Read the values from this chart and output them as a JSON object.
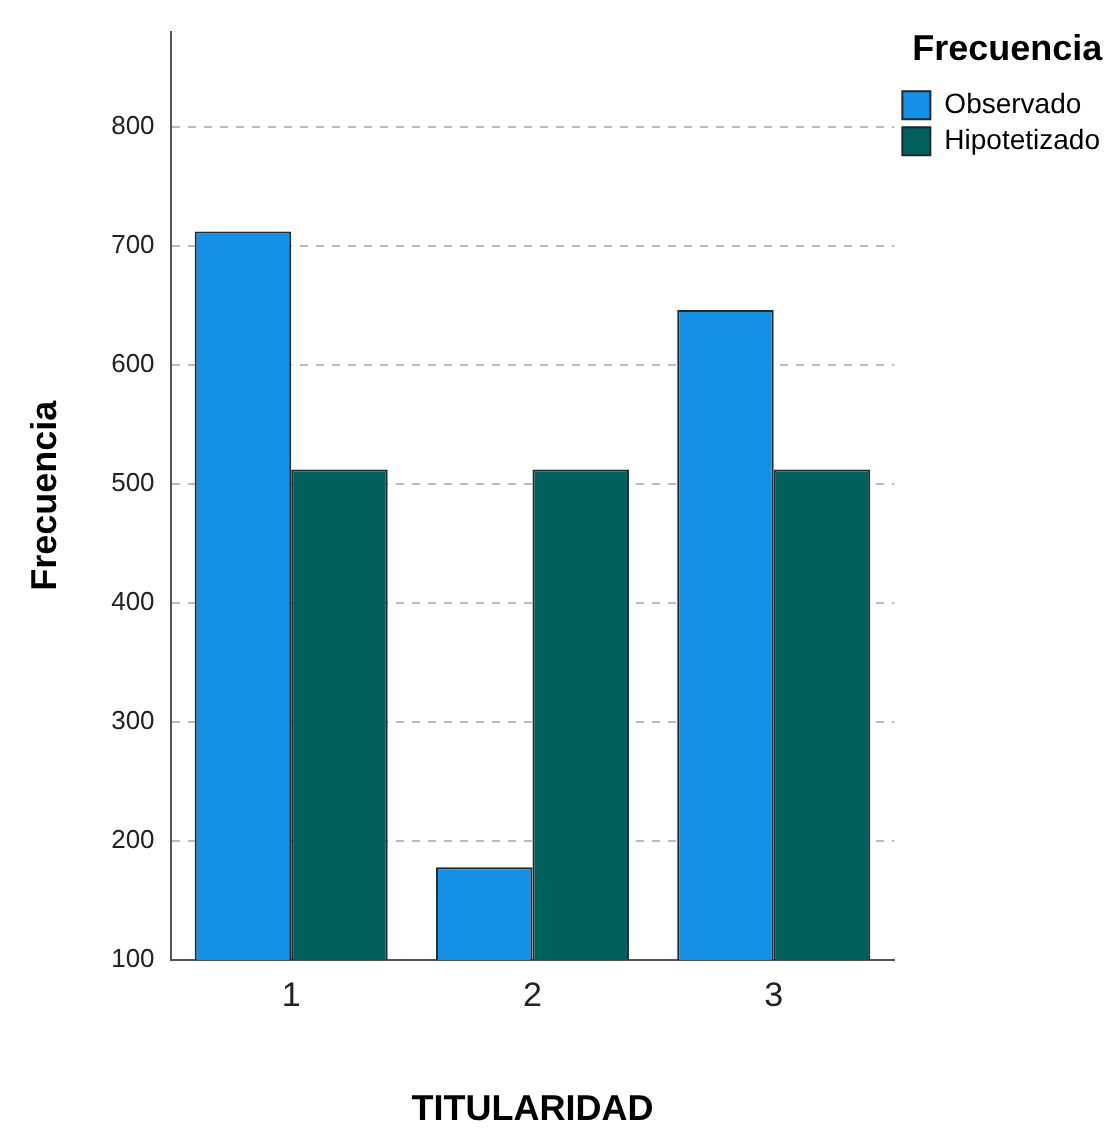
{
  "chart_data": {
    "type": "bar",
    "xlabel": "TITULARIDAD",
    "ylabel": "Frecuencia",
    "legend_title": "Frecuencia",
    "categories": [
      "1",
      "2",
      "3"
    ],
    "series": [
      {
        "name": "Observado",
        "color": "#1490e6",
        "values": [
          712,
          178,
          646
        ]
      },
      {
        "name": "Hipotetizado",
        "color": "#00605c",
        "values": [
          512,
          512,
          512
        ]
      }
    ],
    "ylim": [
      100,
      880
    ],
    "yticks": [
      100,
      200,
      300,
      400,
      500,
      600,
      700,
      800
    ],
    "grid": "y",
    "legend": "right"
  }
}
